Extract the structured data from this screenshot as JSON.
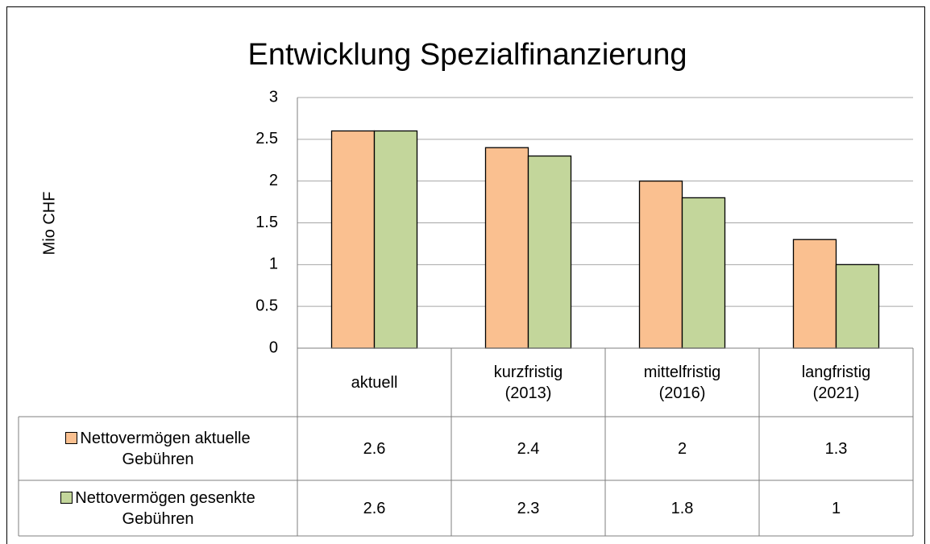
{
  "chart_data": {
    "type": "bar",
    "title": "Entwicklung Spezialfinanzierung",
    "y_label": "Mio CHF",
    "categories": [
      "aktuell",
      "kurzfristig (2013)",
      "mittelfristig (2016)",
      "langfristig (2021)"
    ],
    "series": [
      {
        "name": "Nettovermögen aktuelle Gebühren",
        "color": "#fac090",
        "values": [
          2.6,
          2.4,
          2,
          1.3
        ]
      },
      {
        "name": "Nettovermögen gesenkte Gebühren",
        "color": "#c3d69b",
        "values": [
          2.6,
          2.3,
          1.8,
          1
        ]
      }
    ],
    "ylim": [
      0,
      3
    ],
    "yticks": [
      0,
      0.5,
      1,
      1.5,
      2,
      2.5,
      3
    ],
    "grid": true,
    "data_table": true
  }
}
